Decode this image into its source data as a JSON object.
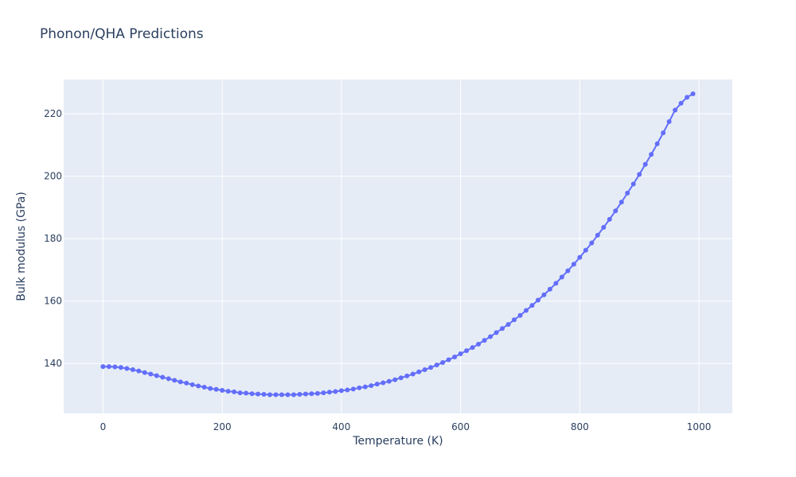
{
  "chart_data": {
    "type": "line",
    "title": "Phonon/QHA Predictions",
    "xlabel": "Temperature (K)",
    "ylabel": "Bulk modulus (GPa)",
    "xlim": [
      -66,
      1056
    ],
    "ylim": [
      124,
      231
    ],
    "xticks": [
      0,
      200,
      400,
      600,
      800,
      1000
    ],
    "yticks": [
      140,
      160,
      180,
      200,
      220
    ],
    "grid": true,
    "markers": true,
    "colors": {
      "series": "#636efa",
      "plot_bg": "#e5ecf6",
      "grid": "#ffffff",
      "text": "#2a3f5f"
    },
    "series": [
      {
        "x": [
          0,
          10,
          20,
          30,
          40,
          50,
          60,
          70,
          80,
          90,
          100,
          110,
          120,
          130,
          140,
          150,
          160,
          170,
          180,
          190,
          200,
          210,
          220,
          230,
          240,
          250,
          260,
          270,
          280,
          290,
          300,
          310,
          320,
          330,
          340,
          350,
          360,
          370,
          380,
          390,
          400,
          410,
          420,
          430,
          440,
          450,
          460,
          470,
          480,
          490,
          500,
          510,
          520,
          530,
          540,
          550,
          560,
          570,
          580,
          590,
          600,
          610,
          620,
          630,
          640,
          650,
          660,
          670,
          680,
          690,
          700,
          710,
          720,
          730,
          740,
          750,
          760,
          770,
          780,
          790,
          800,
          810,
          820,
          830,
          840,
          850,
          860,
          870,
          880,
          890,
          900,
          910,
          920,
          930,
          940,
          950,
          960,
          970,
          980,
          990
        ],
        "y": [
          139.0,
          139.0,
          138.9,
          138.7,
          138.4,
          138.0,
          137.6,
          137.1,
          136.6,
          136.1,
          135.6,
          135.1,
          134.6,
          134.1,
          133.7,
          133.2,
          132.8,
          132.4,
          132.0,
          131.7,
          131.4,
          131.1,
          130.9,
          130.6,
          130.5,
          130.3,
          130.2,
          130.1,
          130.0,
          130.0,
          130.0,
          130.0,
          130.0,
          130.1,
          130.2,
          130.3,
          130.4,
          130.6,
          130.8,
          131.0,
          131.3,
          131.5,
          131.8,
          132.2,
          132.5,
          132.9,
          133.4,
          133.8,
          134.3,
          134.8,
          135.4,
          136.0,
          136.6,
          137.3,
          138.0,
          138.7,
          139.5,
          140.3,
          141.2,
          142.1,
          143.1,
          144.1,
          145.1,
          146.2,
          147.4,
          148.6,
          149.9,
          151.2,
          152.5,
          154.0,
          155.4,
          157.0,
          158.6,
          160.3,
          162.0,
          163.8,
          165.7,
          167.7,
          169.7,
          171.8,
          174.0,
          176.3,
          178.6,
          181.1,
          183.6,
          186.2,
          188.9,
          191.7,
          194.6,
          197.5,
          200.6,
          203.8,
          207.0,
          210.4,
          213.9,
          217.5,
          221.2,
          223.4,
          225.3,
          226.4
        ]
      }
    ]
  }
}
